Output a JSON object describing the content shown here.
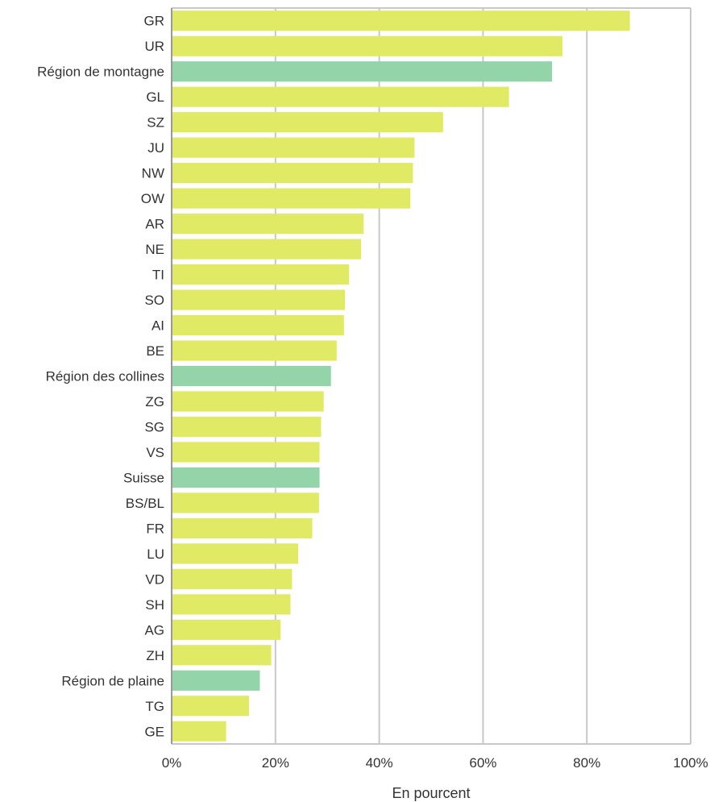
{
  "chart_data": {
    "type": "bar",
    "orientation": "horizontal",
    "xlabel": "En pourcent",
    "xlim": [
      0,
      100
    ],
    "xticks": [
      0,
      20,
      40,
      60,
      80,
      100
    ],
    "xtick_labels": [
      "0%",
      "20%",
      "40%",
      "60%",
      "80%",
      "100%"
    ],
    "grid": true,
    "colors": {
      "canton": "#e1ea64",
      "region": "#93d4a8",
      "grid": "#c8c8c8",
      "axis": "#999999"
    },
    "categories": [
      "GR",
      "UR",
      "Région de montagne",
      "GL",
      "SZ",
      "JU",
      "NW",
      "OW",
      "AR",
      "NE",
      "TI",
      "SO",
      "AI",
      "BE",
      "Région des collines",
      "ZG",
      "SG",
      "VS",
      "Suisse",
      "BS/BL",
      "FR",
      "LU",
      "VD",
      "SH",
      "AG",
      "ZH",
      "Région de plaine",
      "TG",
      "GE"
    ],
    "values": [
      88.3,
      75.3,
      73.3,
      65.0,
      52.3,
      46.8,
      46.5,
      46.0,
      37.0,
      36.5,
      34.2,
      33.4,
      33.2,
      31.8,
      30.7,
      29.3,
      28.8,
      28.5,
      28.5,
      28.4,
      27.1,
      24.4,
      23.2,
      22.9,
      21.0,
      19.2,
      17.0,
      14.9,
      10.5
    ],
    "highlight": [
      false,
      false,
      true,
      false,
      false,
      false,
      false,
      false,
      false,
      false,
      false,
      false,
      false,
      false,
      true,
      false,
      false,
      false,
      true,
      false,
      false,
      false,
      false,
      false,
      false,
      false,
      true,
      false,
      false
    ]
  }
}
